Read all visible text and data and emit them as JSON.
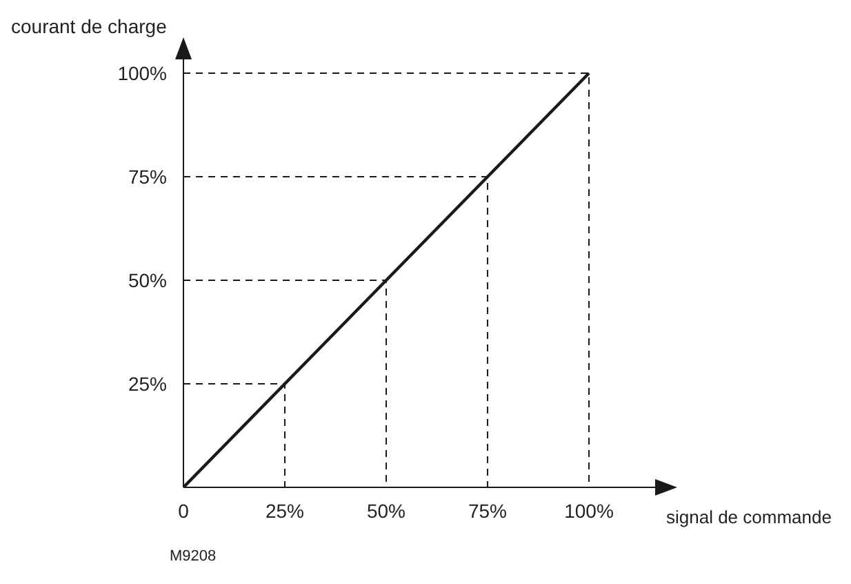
{
  "chart_data": {
    "type": "line",
    "xlabel": "signal de commande",
    "ylabel": "courant de charge",
    "annotations": [
      "M9208"
    ],
    "xlim": [
      0,
      117
    ],
    "ylim": [
      0,
      104
    ],
    "xticks": [
      {
        "value": 0,
        "label": "0"
      },
      {
        "value": 25,
        "label": "25%"
      },
      {
        "value": 50,
        "label": "50%"
      },
      {
        "value": 75,
        "label": "75%"
      },
      {
        "value": 100,
        "label": "100%"
      }
    ],
    "yticks": [
      {
        "value": 25,
        "label": "25%"
      },
      {
        "value": 50,
        "label": "50%"
      },
      {
        "value": 75,
        "label": "75%"
      },
      {
        "value": 100,
        "label": "100%"
      }
    ],
    "grid": false,
    "legend": false,
    "marker": "none",
    "series": [
      {
        "color": "#1a1a1a",
        "x": [
          0,
          100
        ],
        "values": [
          0,
          100
        ],
        "line_style": "solid"
      },
      {
        "color": "#1a1a1a",
        "x": [
          0,
          25,
          25
        ],
        "values": [
          25,
          25,
          0
        ],
        "line_style": "dashed"
      },
      {
        "color": "#1a1a1a",
        "x": [
          0,
          50,
          50
        ],
        "values": [
          50,
          50,
          0
        ],
        "line_style": "dashed"
      },
      {
        "color": "#1a1a1a",
        "x": [
          0,
          75,
          75
        ],
        "values": [
          75,
          75,
          0
        ],
        "line_style": "dashed"
      },
      {
        "color": "#1a1a1a",
        "x": [
          0,
          100,
          100
        ],
        "values": [
          100,
          100,
          0
        ],
        "line_style": "dashed"
      }
    ]
  }
}
